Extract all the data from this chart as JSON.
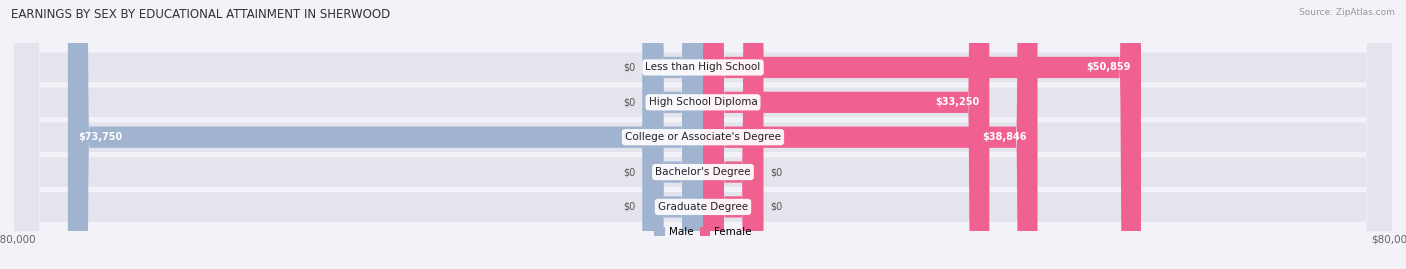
{
  "title": "EARNINGS BY SEX BY EDUCATIONAL ATTAINMENT IN SHERWOOD",
  "source": "Source: ZipAtlas.com",
  "categories": [
    "Less than High School",
    "High School Diploma",
    "College or Associate's Degree",
    "Bachelor's Degree",
    "Graduate Degree"
  ],
  "male_values": [
    0,
    0,
    73750,
    0,
    0
  ],
  "female_values": [
    50859,
    33250,
    38846,
    0,
    0
  ],
  "male_color": "#a0b4d0",
  "female_color": "#f06090",
  "background_color": "#f2f2f8",
  "bar_bg_color": "#e4e4ec",
  "x_max": 80000,
  "x_min": -80000,
  "title_fontsize": 8.5,
  "label_fontsize": 7.5,
  "value_fontsize": 7.0,
  "axis_label_fontsize": 7.5,
  "stub_size": 7000,
  "zero_stub_size": 7000
}
